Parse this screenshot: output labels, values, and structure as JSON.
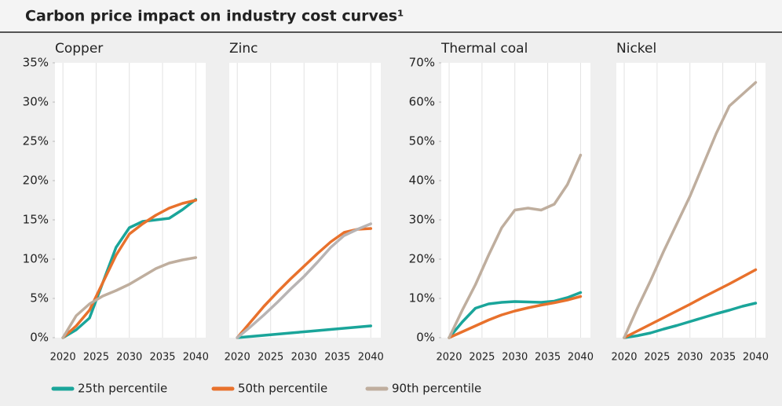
{
  "title": "Carbon price impact on industry cost curves¹",
  "chart_data": [
    {
      "type": "line",
      "title": "Copper",
      "x": [
        2020,
        2022,
        2024,
        2026,
        2028,
        2030,
        2032,
        2034,
        2036,
        2038,
        2040
      ],
      "xlim": [
        2018.8,
        2041.5
      ],
      "xticks": [
        2020,
        2025,
        2030,
        2035,
        2040
      ],
      "ylim": [
        0,
        35
      ],
      "yticks": [
        {
          "value": 0,
          "label": "0%"
        },
        {
          "value": 5,
          "label": "5%"
        },
        {
          "value": 10,
          "label": "10%"
        },
        {
          "value": 15,
          "label": "15%"
        },
        {
          "value": 20,
          "label": "20%"
        },
        {
          "value": 25,
          "label": "25%"
        },
        {
          "value": 30,
          "label": "30%"
        },
        {
          "value": 35,
          "label": "35%"
        }
      ],
      "series": [
        {
          "name": "25th percentile",
          "color": "#1aa59a",
          "values": [
            0,
            1,
            2.5,
            7,
            11.5,
            14,
            14.8,
            15,
            15.2,
            16.3,
            17.6
          ]
        },
        {
          "name": "50th percentile",
          "color": "#e8712c",
          "values": [
            0,
            1.5,
            3.5,
            7,
            10.5,
            13.2,
            14.5,
            15.6,
            16.5,
            17.1,
            17.5
          ]
        },
        {
          "name": "90th percentile",
          "color": "#bfae9e",
          "values": [
            0,
            2.8,
            4.3,
            5.3,
            6,
            6.8,
            7.8,
            8.8,
            9.5,
            9.9,
            10.2
          ]
        }
      ]
    },
    {
      "type": "line",
      "title": "Zinc",
      "x": [
        2020,
        2022,
        2024,
        2026,
        2028,
        2030,
        2032,
        2034,
        2036,
        2038,
        2040
      ],
      "xlim": [
        2018.8,
        2041.5
      ],
      "xticks": [
        2020,
        2025,
        2030,
        2035,
        2040
      ],
      "ylim": [
        0,
        35
      ],
      "series": [
        {
          "name": "25th percentile",
          "color": "#1aa59a",
          "values": [
            0,
            0.15,
            0.3,
            0.45,
            0.6,
            0.75,
            0.9,
            1.05,
            1.2,
            1.35,
            1.5
          ]
        },
        {
          "name": "50th percentile",
          "color": "#e8712c",
          "values": [
            0,
            2,
            4,
            5.8,
            7.5,
            9.1,
            10.7,
            12.2,
            13.4,
            13.8,
            13.9
          ]
        },
        {
          "name": "90th percentile",
          "color": "#b8b4b4",
          "values": [
            0,
            1.4,
            2.9,
            4.5,
            6.2,
            7.8,
            9.6,
            11.5,
            13,
            13.8,
            14.5
          ]
        }
      ]
    },
    {
      "type": "line",
      "title": "Thermal coal",
      "x": [
        2020,
        2022,
        2024,
        2026,
        2028,
        2030,
        2032,
        2034,
        2036,
        2038,
        2040
      ],
      "xlim": [
        2018.8,
        2041.5
      ],
      "xticks": [
        2020,
        2025,
        2030,
        2035,
        2040
      ],
      "ylim": [
        0,
        70
      ],
      "yticks": [
        {
          "value": 0,
          "label": "0%"
        },
        {
          "value": 10,
          "label": "10%"
        },
        {
          "value": 20,
          "label": "20%"
        },
        {
          "value": 30,
          "label": "30%"
        },
        {
          "value": 40,
          "label": "40%"
        },
        {
          "value": 50,
          "label": "50%"
        },
        {
          "value": 60,
          "label": "60%"
        },
        {
          "value": 70,
          "label": "70%"
        }
      ],
      "series": [
        {
          "name": "25th percentile",
          "color": "#1aa59a",
          "values": [
            0,
            4,
            7.5,
            8.6,
            9,
            9.2,
            9.1,
            9,
            9.3,
            10.2,
            11.5
          ]
        },
        {
          "name": "50th percentile",
          "color": "#e8712c",
          "values": [
            0,
            1.5,
            3,
            4.5,
            5.8,
            6.8,
            7.6,
            8.3,
            8.9,
            9.6,
            10.5
          ]
        },
        {
          "name": "90th percentile",
          "color": "#bfae9e",
          "values": [
            0,
            7,
            13.5,
            21,
            28,
            32.5,
            33,
            32.5,
            34,
            39,
            46.5
          ]
        }
      ]
    },
    {
      "type": "line",
      "title": "Nickel",
      "x": [
        2020,
        2022,
        2024,
        2026,
        2028,
        2030,
        2032,
        2034,
        2036,
        2038,
        2040
      ],
      "xlim": [
        2018.8,
        2041.5
      ],
      "xticks": [
        2020,
        2025,
        2030,
        2035,
        2040
      ],
      "ylim": [
        0,
        70
      ],
      "series": [
        {
          "name": "25th percentile",
          "color": "#1aa59a",
          "values": [
            0,
            0.5,
            1.2,
            2.2,
            3.1,
            4.1,
            5.1,
            6.1,
            7,
            8,
            8.8
          ]
        },
        {
          "name": "50th percentile",
          "color": "#e8712c",
          "values": [
            0,
            1.7,
            3.4,
            5.1,
            6.8,
            8.5,
            10.3,
            12,
            13.7,
            15.5,
            17.3
          ]
        },
        {
          "name": "90th percentile",
          "color": "#bfae9e",
          "values": [
            0,
            7.5,
            14.5,
            22,
            29,
            36,
            44,
            52,
            59,
            62,
            65
          ]
        }
      ]
    }
  ]
}
